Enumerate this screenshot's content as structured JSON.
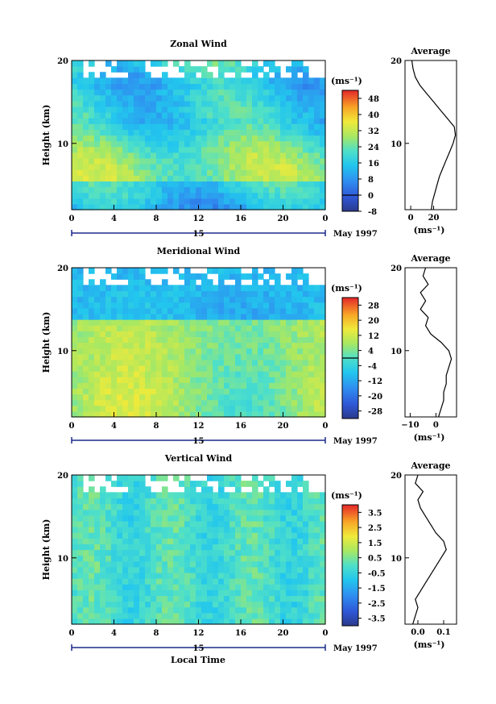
{
  "figure": {
    "x_axis_title": "Local Time",
    "date_label": "May 1997",
    "day_label": "15"
  },
  "chart_data": [
    {
      "type": "heatmap",
      "title": "Zonal Wind",
      "ylabel": "Height (km)",
      "xlabel": "",
      "x_ticks": [
        "0",
        "4",
        "8",
        "12",
        "16",
        "20",
        "0"
      ],
      "y_ticks": [
        "20",
        "10"
      ],
      "xlim": [
        0,
        24
      ],
      "ylim": [
        2,
        20
      ],
      "colorbar": {
        "unit": "(ms⁻¹)",
        "ticks": [
          "48",
          "40",
          "32",
          "24",
          "16",
          "8",
          "0",
          "-8"
        ],
        "min": -8,
        "max": 52,
        "zero_line": 0
      },
      "average_profile": {
        "title": "Average",
        "unit": "(ms⁻¹)",
        "x_ticks": [
          "0",
          "20"
        ],
        "xlim": [
          -5,
          40
        ],
        "y_ticks": [
          "20",
          "10"
        ],
        "height_km": [
          2,
          3,
          4,
          5,
          6,
          7,
          8,
          9,
          10,
          11,
          12,
          13,
          14,
          15,
          16,
          17,
          18,
          19,
          20
        ],
        "values": [
          18,
          19,
          21,
          23,
          25,
          28,
          31,
          34,
          37,
          39,
          38,
          32,
          26,
          20,
          14,
          8,
          4,
          2,
          1
        ]
      }
    },
    {
      "type": "heatmap",
      "title": "Meridional Wind",
      "ylabel": "Height (km)",
      "xlabel": "",
      "x_ticks": [
        "0",
        "4",
        "8",
        "12",
        "16",
        "20",
        "0"
      ],
      "y_ticks": [
        "20",
        "10"
      ],
      "xlim": [
        0,
        24
      ],
      "ylim": [
        2,
        20
      ],
      "colorbar": {
        "unit": "(ms⁻¹)",
        "ticks": [
          "28",
          "20",
          "12",
          "4",
          "-4",
          "-12",
          "-20",
          "-28"
        ],
        "min": -32,
        "max": 32,
        "zero_line": 0
      },
      "average_profile": {
        "title": "Average",
        "unit": "(ms⁻¹)",
        "x_ticks": [
          "−10",
          "0"
        ],
        "xlim": [
          -12,
          8
        ],
        "y_ticks": [
          "20",
          "10"
        ],
        "height_km": [
          2,
          3,
          4,
          5,
          6,
          7,
          8,
          9,
          10,
          11,
          12,
          13,
          14,
          15,
          16,
          17,
          18,
          19,
          20
        ],
        "values": [
          1,
          2,
          3,
          3,
          4,
          4,
          5,
          6,
          5,
          2,
          -2,
          -4,
          -3,
          -6,
          -4,
          -6,
          -3,
          -5,
          -4
        ]
      }
    },
    {
      "type": "heatmap",
      "title": "Vertical Wind",
      "ylabel": "Height (km)",
      "xlabel": "Local Time",
      "x_ticks": [
        "0",
        "4",
        "8",
        "12",
        "16",
        "20",
        "0"
      ],
      "y_ticks": [
        "20",
        "10"
      ],
      "xlim": [
        0,
        24
      ],
      "ylim": [
        2,
        20
      ],
      "colorbar": {
        "unit": "(ms⁻¹)",
        "ticks": [
          "3.5",
          "2.5",
          "1.5",
          "0.5",
          "-0.5",
          "-1.5",
          "-2.5",
          "-3.5"
        ],
        "min": -4,
        "max": 4,
        "zero_line": null
      },
      "average_profile": {
        "title": "Average",
        "unit": "(ms⁻¹)",
        "x_ticks": [
          "0.0",
          "0.1"
        ],
        "xlim": [
          -0.05,
          0.15
        ],
        "y_ticks": [
          "20",
          "10"
        ],
        "height_km": [
          2,
          3,
          4,
          5,
          6,
          7,
          8,
          9,
          10,
          11,
          12,
          13,
          14,
          15,
          16,
          17,
          18,
          19,
          20
        ],
        "values": [
          -0.02,
          -0.01,
          0.0,
          -0.01,
          0.01,
          0.03,
          0.05,
          0.07,
          0.09,
          0.11,
          0.1,
          0.07,
          0.05,
          0.03,
          0.01,
          0.0,
          0.02,
          -0.01,
          0.0
        ]
      }
    }
  ]
}
